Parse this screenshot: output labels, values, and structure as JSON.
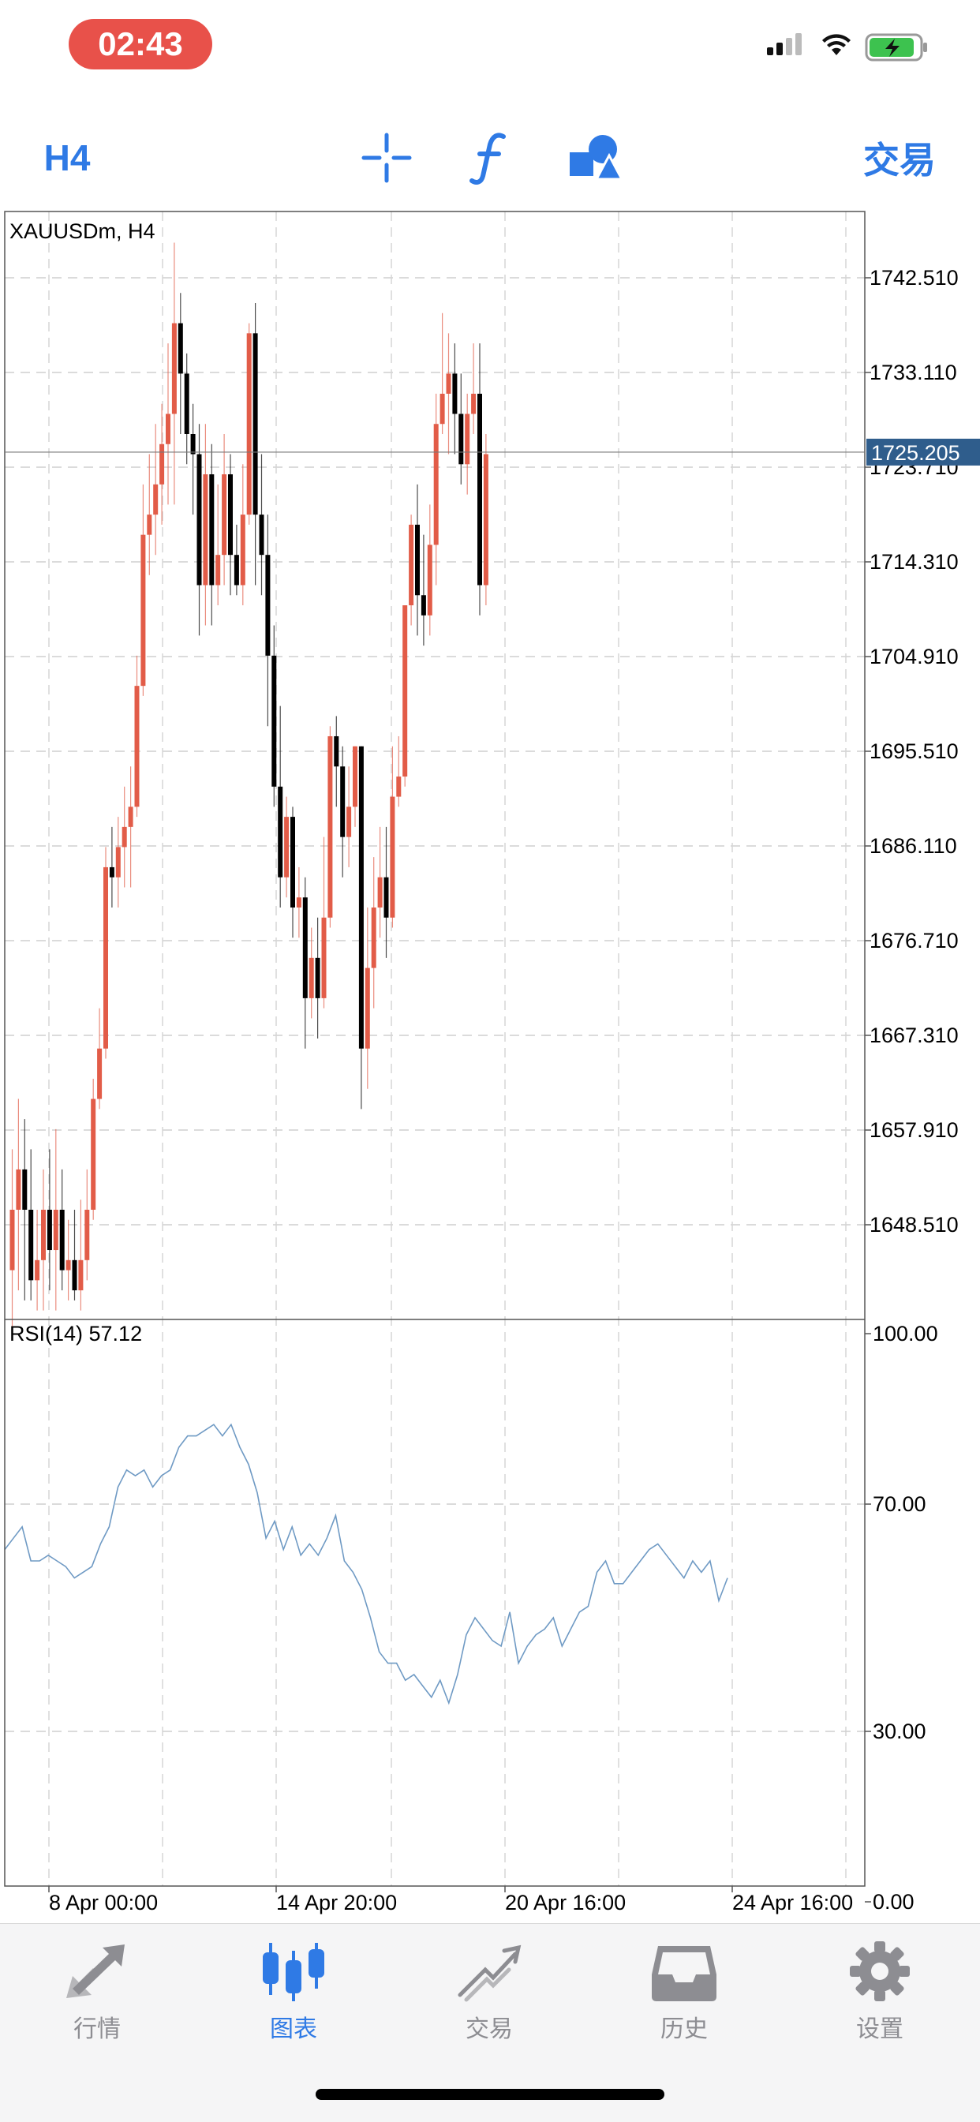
{
  "status_bar": {
    "time": "02:43",
    "icons": [
      "signal-icon",
      "wifi-icon",
      "battery-charging-icon"
    ]
  },
  "toolbar": {
    "timeframe": "H4",
    "trade_label": "交易",
    "tools": [
      "crosshair-icon",
      "indicators-icon",
      "objects-icon"
    ]
  },
  "chart": {
    "symbol_label": "XAUUSDm, H4",
    "current_price": "1725.205",
    "y_ticks": [
      "1742.510",
      "1733.110",
      "1723.710",
      "1714.310",
      "1704.910",
      "1695.510",
      "1686.110",
      "1676.710",
      "1667.310",
      "1657.910",
      "1648.510"
    ],
    "x_ticks": [
      "8 Apr 00:00",
      "14 Apr 20:00",
      "20 Apr 16:00",
      "24 Apr 16:00"
    ],
    "colors": {
      "bull": "#e25c48",
      "bear": "#000000",
      "rsi_line": "#6f9ac4",
      "price_tag": "#2f5d8c"
    },
    "rsi": {
      "label": "RSI(14) 57.12",
      "ticks": [
        "100.00",
        "70.00",
        "30.00",
        "0.00"
      ]
    }
  },
  "chart_data": [
    {
      "type": "candlestick",
      "title": "XAUUSDm, H4",
      "ylim": [
        1640,
        1748
      ],
      "current_price": 1725.205,
      "x_ticks": [
        "8 Apr 00:00",
        "14 Apr 20:00",
        "20 Apr 16:00",
        "24 Apr 16:00"
      ],
      "candles": [
        [
          1644,
          1650,
          1638,
          1656
        ],
        [
          1650,
          1654,
          1642,
          1661
        ],
        [
          1654,
          1650,
          1641,
          1659
        ],
        [
          1650,
          1643,
          1641,
          1656
        ],
        [
          1643,
          1645,
          1640,
          1650
        ],
        [
          1645,
          1650,
          1640,
          1654
        ],
        [
          1650,
          1646,
          1642,
          1656
        ],
        [
          1646,
          1650,
          1640,
          1658
        ],
        [
          1650,
          1644,
          1642,
          1654
        ],
        [
          1644,
          1645,
          1641,
          1649
        ],
        [
          1645,
          1642,
          1641,
          1650
        ],
        [
          1642,
          1645,
          1640,
          1651
        ],
        [
          1645,
          1650,
          1643,
          1654
        ],
        [
          1650,
          1661,
          1649,
          1663
        ],
        [
          1661,
          1666,
          1660,
          1670
        ],
        [
          1666,
          1684,
          1665,
          1686
        ],
        [
          1684,
          1683,
          1680,
          1688
        ],
        [
          1683,
          1686,
          1680,
          1689
        ],
        [
          1686,
          1688,
          1682,
          1692
        ],
        [
          1688,
          1690,
          1682,
          1694
        ],
        [
          1690,
          1702,
          1689,
          1705
        ],
        [
          1702,
          1717,
          1701,
          1722
        ],
        [
          1717,
          1719,
          1713,
          1725
        ],
        [
          1719,
          1722,
          1715,
          1728
        ],
        [
          1722,
          1726,
          1718,
          1730
        ],
        [
          1726,
          1729,
          1720,
          1736
        ],
        [
          1729,
          1738,
          1720,
          1746
        ],
        [
          1738,
          1733,
          1727,
          1741
        ],
        [
          1733,
          1727,
          1724,
          1735
        ],
        [
          1727,
          1725,
          1719,
          1730
        ],
        [
          1725,
          1712,
          1707,
          1728
        ],
        [
          1712,
          1723,
          1708,
          1728
        ],
        [
          1723,
          1712,
          1708,
          1726
        ],
        [
          1712,
          1715,
          1710,
          1722
        ],
        [
          1715,
          1723,
          1712,
          1727
        ],
        [
          1723,
          1715,
          1711,
          1725
        ],
        [
          1715,
          1712,
          1711,
          1718
        ],
        [
          1712,
          1719,
          1710,
          1724
        ],
        [
          1719,
          1737,
          1718,
          1738
        ],
        [
          1737,
          1719,
          1712,
          1740
        ],
        [
          1719,
          1715,
          1711,
          1725
        ],
        [
          1715,
          1705,
          1698,
          1719
        ],
        [
          1705,
          1692,
          1690,
          1708
        ],
        [
          1692,
          1683,
          1680,
          1700
        ],
        [
          1683,
          1689,
          1681,
          1691
        ],
        [
          1689,
          1680,
          1677,
          1690
        ],
        [
          1680,
          1681,
          1677,
          1684
        ],
        [
          1681,
          1671,
          1666,
          1683
        ],
        [
          1671,
          1675,
          1669,
          1678
        ],
        [
          1675,
          1671,
          1667,
          1679
        ],
        [
          1671,
          1679,
          1670,
          1687
        ],
        [
          1679,
          1697,
          1678,
          1698
        ],
        [
          1697,
          1694,
          1690,
          1699
        ],
        [
          1694,
          1687,
          1683,
          1696
        ],
        [
          1687,
          1690,
          1684,
          1694
        ],
        [
          1690,
          1696,
          1688,
          1696
        ],
        [
          1696,
          1666,
          1660,
          1696
        ],
        [
          1666,
          1674,
          1662,
          1680
        ],
        [
          1674,
          1680,
          1670,
          1685
        ],
        [
          1680,
          1683,
          1677,
          1688
        ],
        [
          1683,
          1679,
          1675,
          1688
        ],
        [
          1679,
          1691,
          1678,
          1696
        ],
        [
          1691,
          1693,
          1690,
          1697
        ],
        [
          1693,
          1710,
          1692,
          1710
        ],
        [
          1710,
          1718,
          1708,
          1719
        ],
        [
          1718,
          1711,
          1707,
          1722
        ],
        [
          1711,
          1709,
          1706,
          1717
        ],
        [
          1709,
          1716,
          1707,
          1720
        ],
        [
          1716,
          1728,
          1712,
          1731
        ],
        [
          1728,
          1731,
          1727,
          1739
        ],
        [
          1731,
          1733,
          1725,
          1737
        ],
        [
          1733,
          1729,
          1725,
          1736
        ],
        [
          1729,
          1724,
          1722,
          1733
        ],
        [
          1724,
          1729,
          1721,
          1731
        ],
        [
          1729,
          1731,
          1727,
          1736
        ],
        [
          1731,
          1712,
          1709,
          1736
        ],
        [
          1712,
          1725,
          1710,
          1727
        ]
      ]
    },
    {
      "type": "line",
      "title": "RSI(14) 57.12",
      "ylim": [
        0,
        100
      ],
      "y_ticks": [
        100,
        70,
        30,
        0
      ],
      "values": [
        62,
        64,
        66,
        60,
        60,
        61,
        60,
        59,
        57,
        58,
        59,
        63,
        66,
        73,
        76,
        75,
        76,
        73,
        75,
        76,
        80,
        82,
        82,
        83,
        84,
        82,
        84,
        80,
        77,
        72,
        64,
        67,
        62,
        66,
        61,
        63,
        61,
        64,
        68,
        60,
        58,
        55,
        50,
        44,
        42,
        42,
        39,
        40,
        38,
        36,
        39,
        35,
        40,
        47,
        50,
        48,
        46,
        45,
        51,
        42,
        45,
        47,
        48,
        50,
        45,
        48,
        51,
        52,
        58,
        60,
        56,
        56,
        58,
        60,
        62,
        63,
        61,
        59,
        57,
        60,
        58,
        60,
        53,
        57
      ],
      "last_value": 57.12
    }
  ],
  "tabbar": {
    "items": [
      {
        "label": "行情",
        "icon": "quotes-arrows-icon",
        "active": false
      },
      {
        "label": "图表",
        "icon": "candlestick-chart-icon",
        "active": true
      },
      {
        "label": "交易",
        "icon": "trade-trend-icon",
        "active": false
      },
      {
        "label": "历史",
        "icon": "history-inbox-icon",
        "active": false
      },
      {
        "label": "设置",
        "icon": "gear-icon",
        "active": false
      }
    ]
  }
}
